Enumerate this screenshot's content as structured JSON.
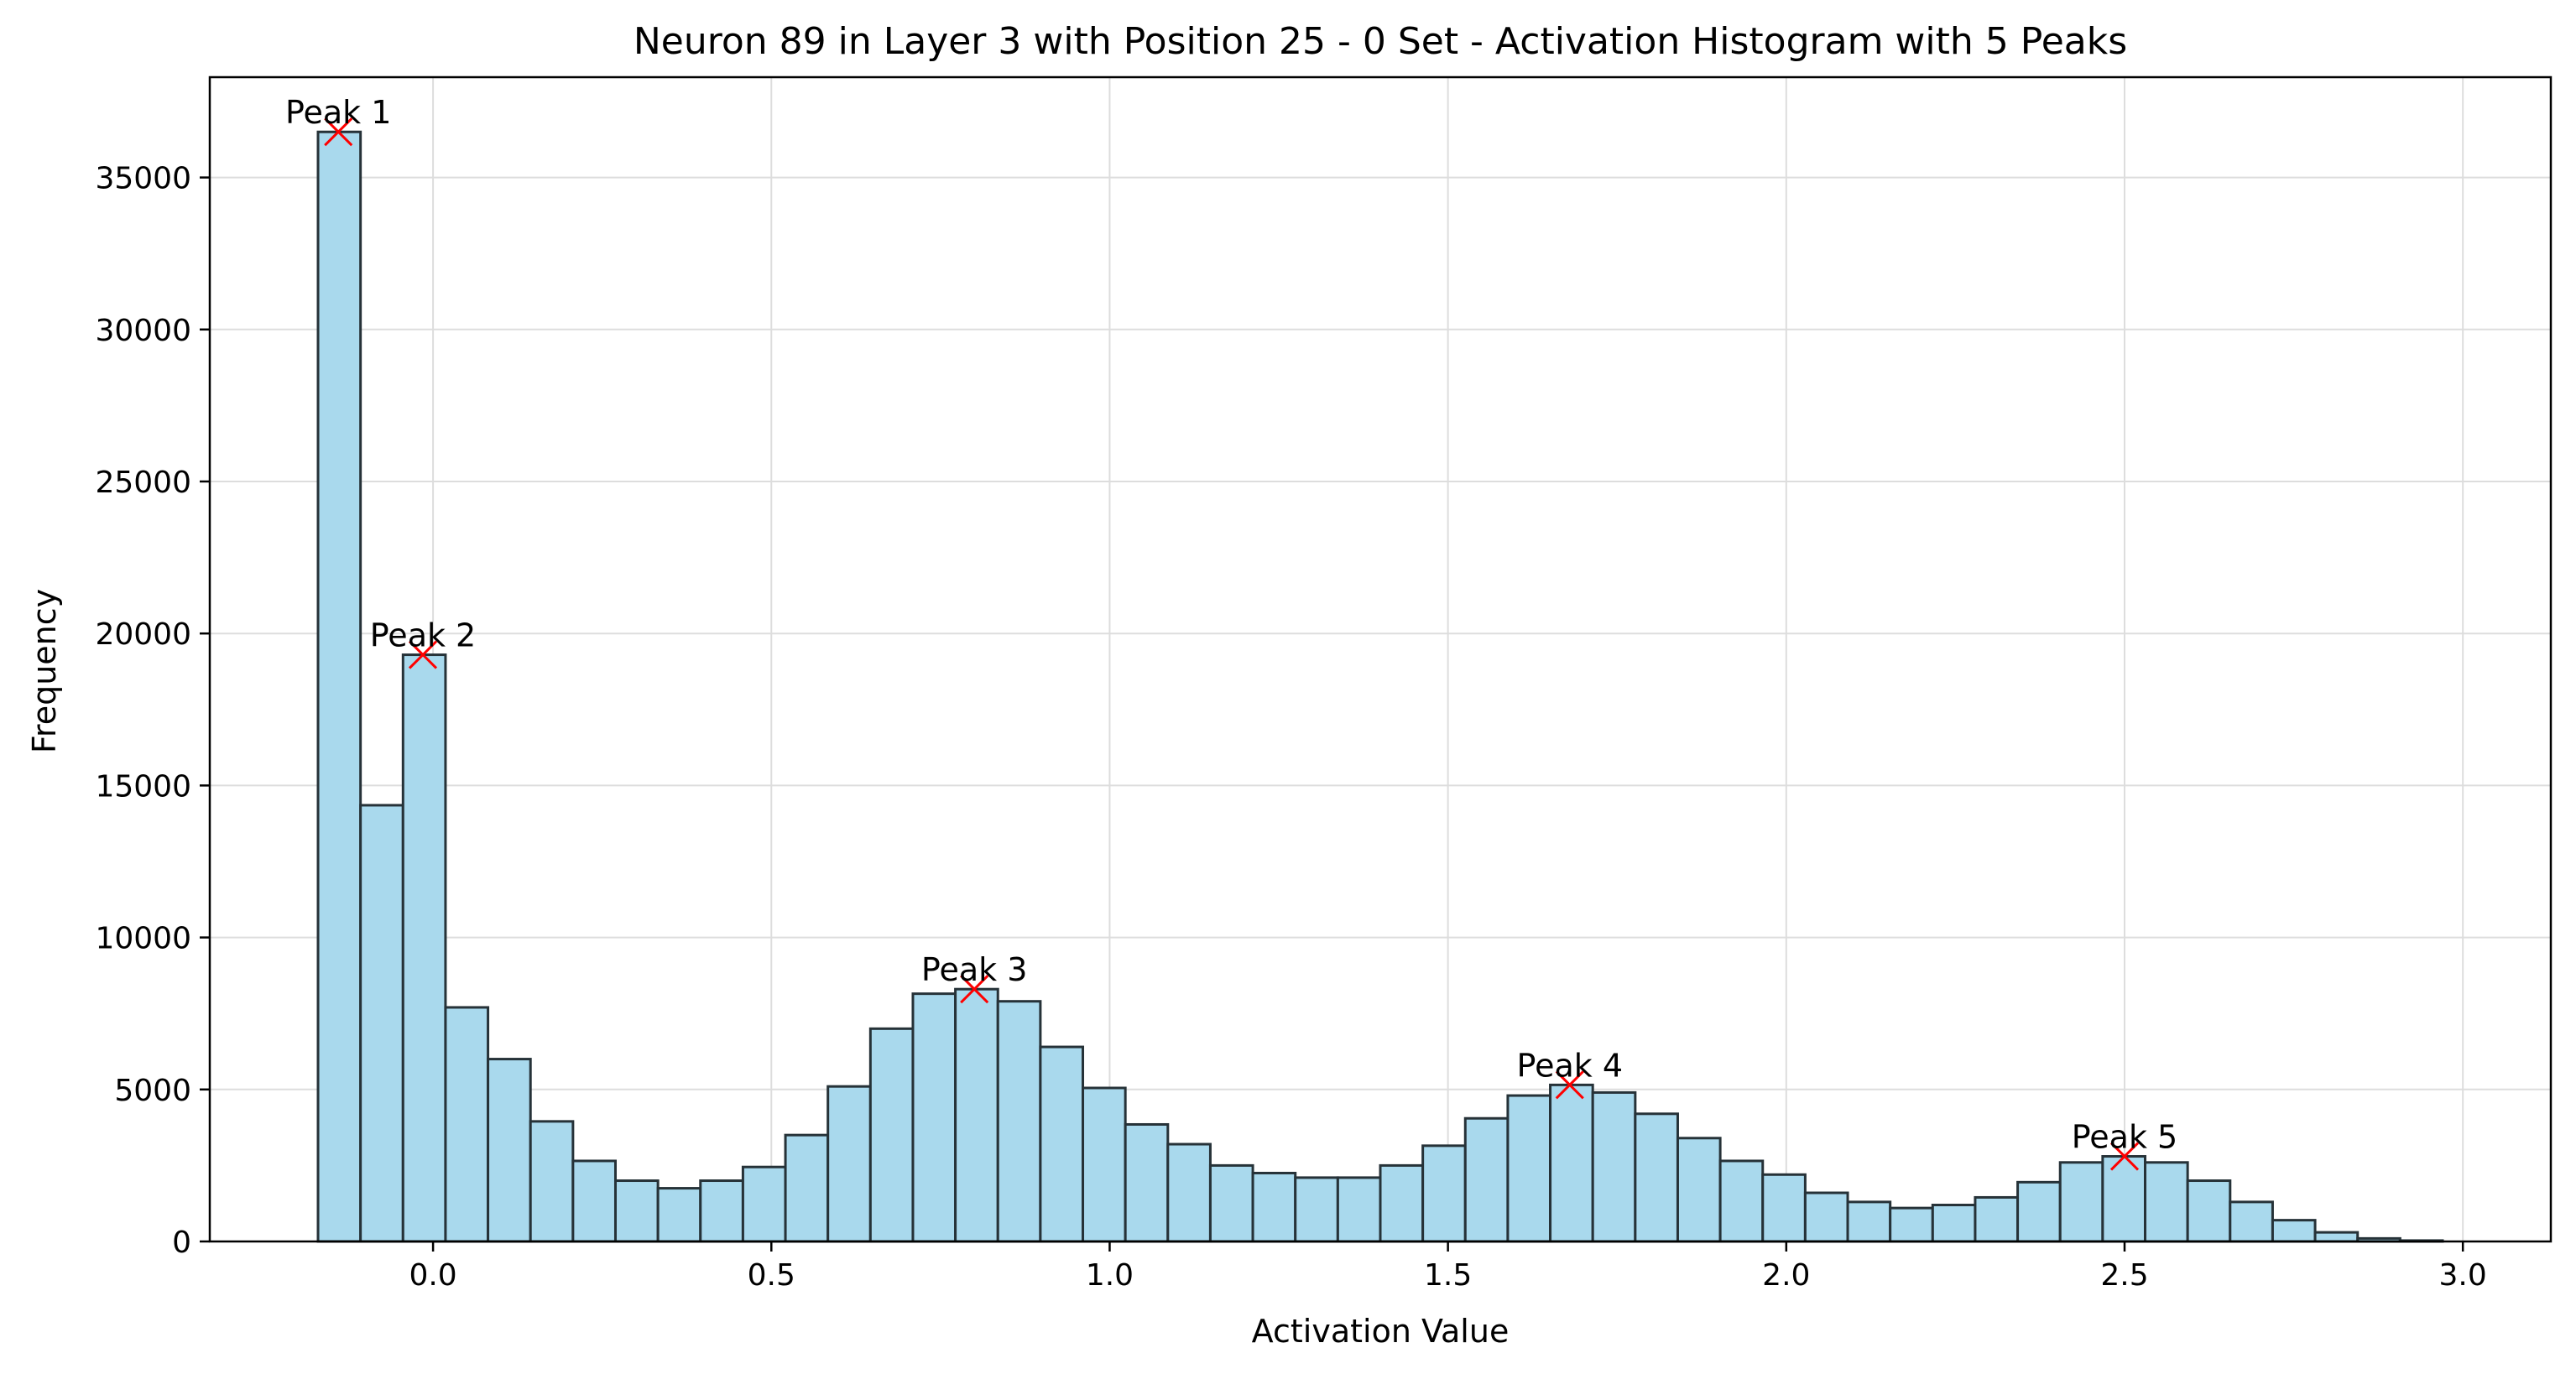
{
  "chart_data": {
    "type": "bar",
    "title": "Neuron 89 in Layer 3 with Position 25 - 0 Set - Activation Histogram with 5 Peaks",
    "xlabel": "Activation Value",
    "ylabel": "Frequency",
    "xlim": [
      -0.33,
      3.13
    ],
    "ylim": [
      0,
      38300
    ],
    "xticks": [
      0.0,
      0.5,
      1.0,
      1.5,
      2.0,
      2.5,
      3.0
    ],
    "xtick_labels": [
      "0.0",
      "0.5",
      "1.0",
      "1.5",
      "2.0",
      "2.5",
      "3.0"
    ],
    "yticks": [
      0,
      5000,
      10000,
      15000,
      20000,
      25000,
      30000,
      35000
    ],
    "ytick_labels": [
      "0",
      "5000",
      "10000",
      "15000",
      "20000",
      "25000",
      "30000",
      "35000"
    ],
    "grid": true,
    "bin_start": -0.17,
    "bin_width": 0.0628,
    "values": [
      36500,
      14350,
      19300,
      7700,
      6000,
      3950,
      2650,
      2000,
      1750,
      2000,
      2450,
      3500,
      5100,
      7000,
      8150,
      8300,
      7900,
      6400,
      5050,
      3850,
      3200,
      2500,
      2250,
      2100,
      2100,
      2500,
      3150,
      4050,
      4800,
      5150,
      4900,
      4200,
      3400,
      2650,
      2200,
      1600,
      1300,
      1100,
      1200,
      1450,
      1950,
      2600,
      2800,
      2600,
      2000,
      1300,
      700,
      300,
      100,
      30
    ],
    "bar_fill": "#a9d9ed",
    "bar_edge": "#263238",
    "marker_color": "#ff0000",
    "peaks": [
      {
        "label": "Peak 1",
        "x": -0.14,
        "y": 36500
      },
      {
        "label": "Peak 2",
        "x": -0.015,
        "y": 19300
      },
      {
        "label": "Peak 3",
        "x": 0.8,
        "y": 8300
      },
      {
        "label": "Peak 4",
        "x": 1.68,
        "y": 5150
      },
      {
        "label": "Peak 5",
        "x": 2.5,
        "y": 2800
      }
    ]
  }
}
